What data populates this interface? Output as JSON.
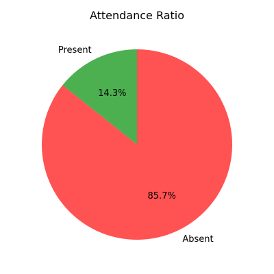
{
  "chart_data": {
    "type": "pie",
    "title": "Attendance Ratio",
    "categories": [
      "Present",
      "Absent"
    ],
    "values": [
      1,
      6
    ],
    "percent_labels": [
      "14.3%",
      "85.7%"
    ],
    "colors": [
      "#4caf50",
      "#ff5252"
    ],
    "start_angle": 90,
    "direction": "counterclockwise",
    "legend": "none"
  }
}
